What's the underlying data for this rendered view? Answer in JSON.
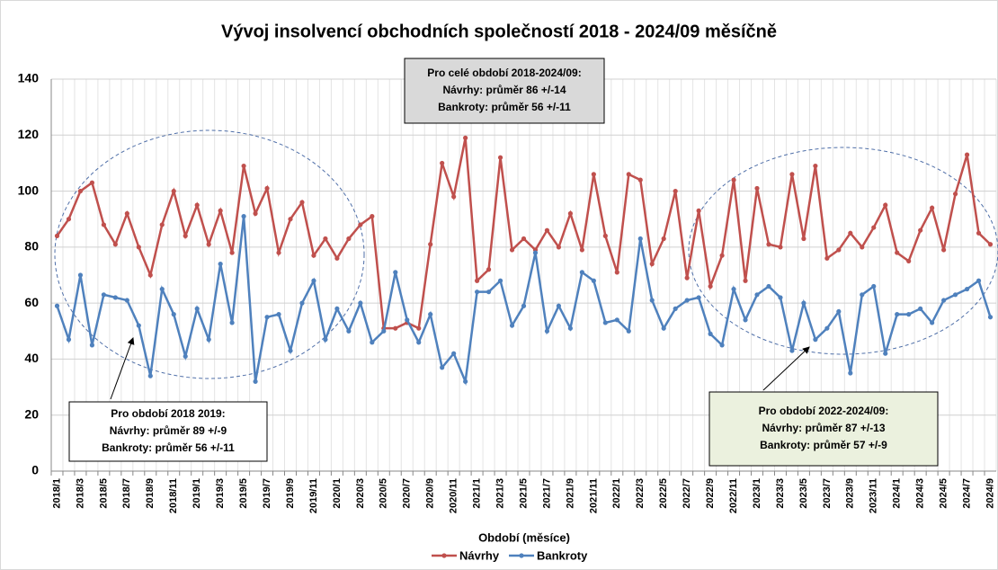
{
  "chart_data": {
    "type": "line",
    "title": "Vývoj insolvencí obchodních společností 2018 - 2024/09 měsíčně",
    "x_label": "Období (měsíce)",
    "categories": [
      "2018/1",
      null,
      "2018/3",
      null,
      "2018/5",
      null,
      "2018/7",
      null,
      "2018/9",
      null,
      "2018/11",
      null,
      "2019/1",
      null,
      "2019/3",
      null,
      "2019/5",
      null,
      "2019/7",
      null,
      "2019/9",
      null,
      "2019/11",
      null,
      "2020/1",
      null,
      "2020/3",
      null,
      "2020/5",
      null,
      "2020/7",
      null,
      "2020/9",
      null,
      "2020/11",
      null,
      "2021/1",
      null,
      "2021/3",
      null,
      "2021/5",
      null,
      "2021/7",
      null,
      "2021/9",
      null,
      "2021/11",
      null,
      "2022/1",
      null,
      "2022/3",
      null,
      "2022/5",
      null,
      "2022/7",
      null,
      "2022/9",
      null,
      "2022/11",
      null,
      "2023/1",
      null,
      "2023/3",
      null,
      "2023/5",
      null,
      "2023/7",
      null,
      "2023/9",
      null,
      "2023/11",
      null,
      "2024/1",
      null,
      "2024/3",
      null,
      "2024/5",
      null,
      "2024/7",
      null,
      "2024/9"
    ],
    "series": [
      {
        "name": "Návrhy",
        "color": "#c0504d",
        "values": [
          84,
          90,
          100,
          103,
          88,
          81,
          92,
          80,
          70,
          88,
          100,
          84,
          95,
          81,
          93,
          78,
          109,
          92,
          101,
          78,
          90,
          96,
          77,
          83,
          76,
          83,
          88,
          91,
          51,
          51,
          53,
          51,
          81,
          110,
          98,
          119,
          68,
          72,
          112,
          79,
          83,
          79,
          86,
          80,
          92,
          79,
          106,
          84,
          71,
          106,
          104,
          74,
          83,
          100,
          69,
          93,
          66,
          77,
          104,
          68,
          101,
          81,
          80,
          106,
          83,
          109,
          76,
          79,
          85,
          80,
          87,
          95,
          78,
          75,
          86,
          94,
          79,
          99,
          113,
          85,
          81
        ]
      },
      {
        "name": "Bankroty",
        "color": "#4f81bd",
        "values": [
          59,
          47,
          70,
          45,
          63,
          62,
          61,
          52,
          34,
          65,
          56,
          41,
          58,
          47,
          74,
          53,
          91,
          32,
          55,
          56,
          43,
          60,
          68,
          47,
          58,
          50,
          60,
          46,
          50,
          71,
          54,
          46,
          56,
          37,
          42,
          32,
          64,
          64,
          68,
          52,
          59,
          78,
          50,
          59,
          51,
          71,
          68,
          53,
          54,
          50,
          83,
          61,
          51,
          58,
          61,
          62,
          49,
          45,
          65,
          54,
          63,
          66,
          62,
          43,
          60,
          47,
          51,
          57,
          35,
          63,
          66,
          42,
          56,
          56,
          58,
          53,
          61,
          63,
          65,
          68,
          55
        ]
      }
    ],
    "ylim": [
      0,
      140
    ],
    "yticks": [
      0,
      20,
      40,
      60,
      80,
      100,
      120,
      140
    ],
    "grid": true,
    "legend": "bottom",
    "annotations": [
      {
        "lines": [
          "Pro celé období 2018-2024/09:",
          "Návrhy: průměr 86 +/-14",
          "Bankroty: průměr 56 +/-11"
        ]
      },
      {
        "lines": [
          "Pro období 2018 2019:",
          "Návrhy: průměr 89 +/-9",
          "Bankroty: průměr 56 +/-11"
        ]
      },
      {
        "lines": [
          "Pro období 2022-2024/09:",
          "Návrhy: průměr 87 +/-13",
          "Bankroty: průměr 57 +/-9"
        ]
      }
    ]
  }
}
